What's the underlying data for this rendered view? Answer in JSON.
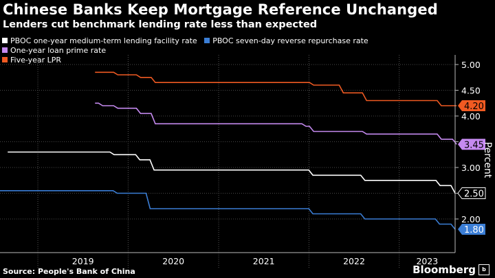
{
  "header": {
    "title": "Chinese Banks Keep Mortgage Reference Unchanged",
    "subtitle": "Lenders cut benchmark lending rate less than expected"
  },
  "footer": {
    "source": "Source: People's Bank of China",
    "brand": "Bloomberg"
  },
  "chart_data": {
    "type": "line",
    "title": "Chinese Banks Keep Mortgage Reference Unchanged",
    "subtitle": "Lenders cut benchmark lending rate less than expected",
    "ylabel": "Percent",
    "xlabel": "",
    "ylim": [
      1.5,
      5.0
    ],
    "xlim": [
      "2018-08-01",
      "2023-08-15"
    ],
    "y_ticks": [
      "5.00",
      "4.50",
      "4.00",
      "3.50",
      "3.00",
      "2.50",
      "2.00"
    ],
    "x_ticks": [
      "2019",
      "2020",
      "2021",
      "2022",
      "2023"
    ],
    "grid": true,
    "legend_position": "top-left",
    "series": [
      {
        "name": "PBOC one-year medium-term lending facility rate",
        "color": "#ffffff",
        "end_label": "2.50",
        "points": [
          [
            "2018-09-01",
            3.3
          ],
          [
            "2019-11-05",
            3.25
          ],
          [
            "2020-02-17",
            3.15
          ],
          [
            "2020-04-15",
            2.95
          ],
          [
            "2022-01-17",
            2.85
          ],
          [
            "2022-08-15",
            2.75
          ],
          [
            "2023-06-15",
            2.65
          ],
          [
            "2023-08-15",
            2.5
          ]
        ]
      },
      {
        "name": "PBOC seven-day reverse repurchase rate",
        "color": "#3b7ed6",
        "end_label": "1.80",
        "points": [
          [
            "2018-08-01",
            2.55
          ],
          [
            "2019-11-18",
            2.5
          ],
          [
            "2020-03-30",
            2.2
          ],
          [
            "2022-01-17",
            2.1
          ],
          [
            "2022-08-15",
            2.0
          ],
          [
            "2023-06-13",
            1.9
          ],
          [
            "2023-08-15",
            1.8
          ]
        ]
      },
      {
        "name": "One-year loan prime rate",
        "color": "#c58af0",
        "end_label": "3.45",
        "points": [
          [
            "2019-08-20",
            4.25
          ],
          [
            "2019-09-20",
            4.2
          ],
          [
            "2019-11-20",
            4.15
          ],
          [
            "2020-02-20",
            4.05
          ],
          [
            "2020-04-20",
            3.85
          ],
          [
            "2021-12-20",
            3.8
          ],
          [
            "2022-01-20",
            3.7
          ],
          [
            "2022-08-22",
            3.65
          ],
          [
            "2023-06-20",
            3.55
          ],
          [
            "2023-08-21",
            3.45
          ]
        ]
      },
      {
        "name": "Five-year LPR",
        "color": "#f05a22",
        "end_label": "4.20",
        "points": [
          [
            "2019-08-20",
            4.85
          ],
          [
            "2019-11-20",
            4.8
          ],
          [
            "2020-02-20",
            4.75
          ],
          [
            "2020-04-20",
            4.65
          ],
          [
            "2022-01-20",
            4.6
          ],
          [
            "2022-05-20",
            4.45
          ],
          [
            "2022-08-22",
            4.3
          ],
          [
            "2023-06-20",
            4.2
          ],
          [
            "2023-08-21",
            4.2
          ]
        ]
      }
    ]
  }
}
